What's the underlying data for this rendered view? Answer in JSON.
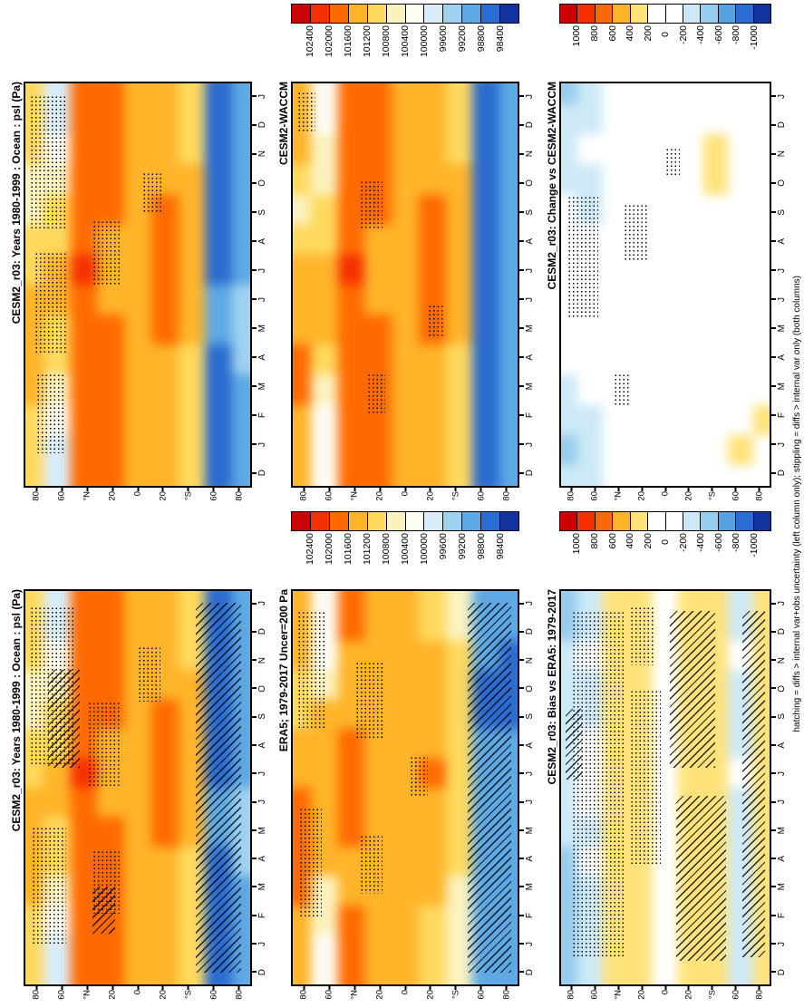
{
  "figure": {
    "caption": "hatching = diffs > internal var+obs uncertainty (left column only); stippling = diffs > internal var only (both columns)"
  },
  "chart_data": {
    "type": "heatmap",
    "units": "Pa",
    "layout": {
      "rows": 2,
      "cols": 3,
      "rotated_page": true,
      "legend_position": "top-of-each-column",
      "grid": false
    },
    "months": [
      "J",
      "D",
      "N",
      "O",
      "S",
      "A",
      "J",
      "J",
      "M",
      "A",
      "M",
      "F",
      "J",
      "D"
    ],
    "months_original_order": [
      "D",
      "J",
      "F",
      "M",
      "A",
      "M",
      "J",
      "J",
      "A",
      "S",
      "O",
      "N",
      "D",
      "J"
    ],
    "lat_ticks": [
      "80",
      "60",
      "°N",
      "20",
      "0",
      "20",
      "°S",
      "60",
      "80"
    ],
    "colorbars": {
      "climo": {
        "labels": [
          "102400",
          "102000",
          "101600",
          "101200",
          "100800",
          "100400",
          "100000",
          "99600",
          "99200",
          "98800",
          "98400"
        ],
        "colors": [
          "#cc0000",
          "#f63000",
          "#ff6a00",
          "#ffb42a",
          "#ffd95e",
          "#fbf2c0",
          "#fdfdf4",
          "#d8edf8",
          "#a0d2f0",
          "#5ea8e4",
          "#2a6cd0",
          "#12339e"
        ]
      },
      "diff": {
        "labels": [
          "1000",
          "800",
          "600",
          "400",
          "200",
          "0",
          "-200",
          "-400",
          "-600",
          "-800",
          "-1000"
        ],
        "colors": [
          "#cc0000",
          "#f63000",
          "#ff6a00",
          "#ffb42a",
          "#ffe27a",
          "#ffffff",
          "#ffffff",
          "#cde9f6",
          "#96ccee",
          "#58a0e0",
          "#2a6cd0",
          "#12339e"
        ]
      }
    },
    "panels": [
      {
        "position": "top-left",
        "title": "CESM2_r03: Years 1980-1999 : Ocean : psl (Pa)",
        "palette": "climo",
        "colorbar": null,
        "field": "cesm2_climo",
        "stipple": [
          {
            "x": 0.02,
            "y": 0.03,
            "w": 0.17,
            "h": 0.33
          },
          {
            "x": 0.04,
            "y": 0.42,
            "w": 0.14,
            "h": 0.25
          },
          {
            "x": 0.3,
            "y": 0.34,
            "w": 0.12,
            "h": 0.16
          },
          {
            "x": 0.52,
            "y": 0.22,
            "w": 0.09,
            "h": 0.1
          },
          {
            "x": 0.05,
            "y": 0.72,
            "w": 0.13,
            "h": 0.2
          }
        ],
        "hatch": []
      },
      {
        "position": "top-middle",
        "title": "CESM2-WACCM",
        "palette": "climo",
        "colorbar": "climo",
        "field": "waccm_climo",
        "stipple": [
          {
            "x": 0.3,
            "y": 0.24,
            "w": 0.1,
            "h": 0.12
          },
          {
            "x": 0.02,
            "y": 0.02,
            "w": 0.08,
            "h": 0.1
          },
          {
            "x": 0.33,
            "y": 0.72,
            "w": 0.08,
            "h": 0.1
          },
          {
            "x": 0.6,
            "y": 0.55,
            "w": 0.07,
            "h": 0.08
          }
        ],
        "hatch": []
      },
      {
        "position": "top-right",
        "title": "CESM2_r03: Change vs CESM2-WACCM",
        "palette": "diff",
        "colorbar": "diff",
        "field": "change_vs_waccm",
        "stipple": [
          {
            "x": 0.03,
            "y": 0.28,
            "w": 0.15,
            "h": 0.3
          },
          {
            "x": 0.3,
            "y": 0.3,
            "w": 0.12,
            "h": 0.14
          },
          {
            "x": 0.5,
            "y": 0.16,
            "w": 0.07,
            "h": 0.07
          },
          {
            "x": 0.25,
            "y": 0.72,
            "w": 0.08,
            "h": 0.08
          }
        ],
        "hatch": []
      },
      {
        "position": "bottom-left",
        "title": "CESM2_r03: Years 1980-1999 : Ocean : psl (Pa)",
        "palette": "climo",
        "colorbar": null,
        "field": "cesm2_climo",
        "stipple": [
          {
            "x": 0.02,
            "y": 0.04,
            "w": 0.2,
            "h": 0.4
          },
          {
            "x": 0.28,
            "y": 0.28,
            "w": 0.14,
            "h": 0.22
          },
          {
            "x": 0.3,
            "y": 0.66,
            "w": 0.12,
            "h": 0.16
          },
          {
            "x": 0.5,
            "y": 0.14,
            "w": 0.1,
            "h": 0.14
          },
          {
            "x": 0.03,
            "y": 0.6,
            "w": 0.15,
            "h": 0.3
          }
        ],
        "hatch": [
          {
            "x": 0.1,
            "y": 0.2,
            "w": 0.14,
            "h": 0.25
          },
          {
            "x": 0.76,
            "y": 0.03,
            "w": 0.2,
            "h": 0.94
          },
          {
            "x": 0.3,
            "y": 0.75,
            "w": 0.1,
            "h": 0.12
          }
        ]
      },
      {
        "position": "bottom-middle",
        "title": "ERA5; 1979-2017 Uncer=200 Pa",
        "palette": "climo",
        "colorbar": "climo",
        "field": "era5_climo",
        "stipple": [
          {
            "x": 0.02,
            "y": 0.05,
            "w": 0.13,
            "h": 0.3
          },
          {
            "x": 0.28,
            "y": 0.18,
            "w": 0.12,
            "h": 0.2
          },
          {
            "x": 0.3,
            "y": 0.62,
            "w": 0.1,
            "h": 0.15
          },
          {
            "x": 0.03,
            "y": 0.55,
            "w": 0.1,
            "h": 0.28
          },
          {
            "x": 0.52,
            "y": 0.42,
            "w": 0.08,
            "h": 0.1
          }
        ],
        "hatch": [
          {
            "x": 0.78,
            "y": 0.03,
            "w": 0.19,
            "h": 0.94
          }
        ]
      },
      {
        "position": "bottom-right",
        "title": "CESM2_r03: Bias vs ERA5: 1979-2017",
        "palette": "diff",
        "colorbar": "diff",
        "field": "bias_vs_era5",
        "stipple": [
          {
            "x": 0.05,
            "y": 0.05,
            "w": 0.25,
            "h": 0.88
          },
          {
            "x": 0.33,
            "y": 0.25,
            "w": 0.15,
            "h": 0.45
          },
          {
            "x": 0.33,
            "y": 0.04,
            "w": 0.12,
            "h": 0.15
          }
        ],
        "hatch": [
          {
            "x": 0.52,
            "y": 0.05,
            "w": 0.22,
            "h": 0.4
          },
          {
            "x": 0.55,
            "y": 0.52,
            "w": 0.24,
            "h": 0.42
          },
          {
            "x": 0.87,
            "y": 0.05,
            "w": 0.11,
            "h": 0.88
          },
          {
            "x": 0.02,
            "y": 0.3,
            "w": 0.08,
            "h": 0.18
          }
        ]
      }
    ],
    "lat_columns": [
      "80N",
      "60N",
      "40N",
      "20N",
      "0",
      "20S",
      "40S",
      "60S",
      "80S"
    ],
    "fields": {
      "cesm2_climo": [
        [
          100900,
          99950,
          101900,
          101700,
          101250,
          101300,
          101000,
          98600,
          99100
        ],
        [
          101000,
          99900,
          101900,
          101700,
          101250,
          101300,
          101000,
          98700,
          99100
        ],
        [
          100900,
          100200,
          101800,
          101650,
          101250,
          101400,
          101100,
          98600,
          99050
        ],
        [
          100700,
          100500,
          101700,
          101600,
          101250,
          101500,
          101200,
          98500,
          99000
        ],
        [
          100500,
          100900,
          101700,
          101600,
          101300,
          101600,
          101250,
          98450,
          99000
        ],
        [
          100900,
          101100,
          101900,
          101500,
          101300,
          101750,
          101300,
          98600,
          99100
        ],
        [
          101100,
          101200,
          102050,
          101500,
          101350,
          101800,
          101300,
          98750,
          99150
        ],
        [
          101200,
          101200,
          101950,
          101500,
          101300,
          101700,
          101300,
          98800,
          99200
        ],
        [
          101400,
          101150,
          101850,
          101600,
          101300,
          101600,
          101200,
          98800,
          99200
        ],
        [
          101500,
          101000,
          101800,
          101650,
          101250,
          101500,
          101100,
          98750,
          99200
        ],
        [
          101300,
          100400,
          101800,
          101700,
          101250,
          101400,
          101050,
          98650,
          99100
        ],
        [
          101100,
          100100,
          101850,
          101700,
          101250,
          101350,
          101000,
          98600,
          99100
        ],
        [
          100900,
          99950,
          101900,
          101700,
          101250,
          101300,
          101000,
          98600,
          99100
        ],
        [
          101000,
          99900,
          101900,
          101700,
          101250,
          101300,
          101000,
          98700,
          99100
        ]
      ],
      "waccm_climo": [
        [
          101400,
          100200,
          101900,
          101700,
          101300,
          101300,
          101000,
          98500,
          99000
        ],
        [
          101400,
          100100,
          101900,
          101700,
          101300,
          101300,
          101000,
          98600,
          99000
        ],
        [
          101300,
          100400,
          101800,
          101650,
          101300,
          101400,
          101100,
          98500,
          99000
        ],
        [
          101000,
          100600,
          101700,
          101600,
          101300,
          101500,
          101200,
          98450,
          98900
        ],
        [
          100700,
          101000,
          101700,
          101600,
          101350,
          101600,
          101250,
          98400,
          98900
        ],
        [
          101000,
          101150,
          101900,
          101500,
          101350,
          101750,
          101300,
          98500,
          99000
        ],
        [
          101200,
          101250,
          102050,
          101500,
          101400,
          101800,
          101300,
          98650,
          99050
        ],
        [
          101300,
          101250,
          101950,
          101500,
          101350,
          101700,
          101300,
          98700,
          99100
        ],
        [
          101500,
          101200,
          101850,
          101600,
          101350,
          101600,
          101200,
          98700,
          99100
        ],
        [
          101700,
          101100,
          101800,
          101650,
          101300,
          101500,
          101100,
          98650,
          99100
        ],
        [
          101600,
          100600,
          101800,
          101700,
          101300,
          101400,
          101050,
          98550,
          99000
        ],
        [
          101500,
          100300,
          101850,
          101700,
          101300,
          101350,
          101000,
          98500,
          99000
        ],
        [
          101400,
          100200,
          101900,
          101700,
          101300,
          101300,
          101000,
          98500,
          99000
        ],
        [
          101400,
          100100,
          101900,
          101700,
          101300,
          101300,
          101000,
          98600,
          99000
        ]
      ],
      "era5_climo": [
        [
          101300,
          100200,
          101650,
          101500,
          101350,
          101100,
          100700,
          98800,
          98800
        ],
        [
          101400,
          100150,
          101650,
          101500,
          101350,
          101100,
          100700,
          98900,
          98800
        ],
        [
          101300,
          100350,
          101550,
          101450,
          101350,
          101200,
          100800,
          98800,
          98750
        ],
        [
          101100,
          100750,
          101450,
          101400,
          101300,
          101300,
          100900,
          98700,
          98700
        ],
        [
          100900,
          101200,
          101450,
          101400,
          101400,
          101400,
          100950,
          98650,
          98700
        ],
        [
          101300,
          101300,
          101650,
          101300,
          101400,
          101550,
          101000,
          98800,
          98800
        ],
        [
          101500,
          101350,
          101800,
          101300,
          101450,
          101600,
          101000,
          98950,
          98850
        ],
        [
          101600,
          101400,
          101700,
          101300,
          101400,
          101500,
          101000,
          99000,
          98900
        ],
        [
          101800,
          101400,
          101600,
          101400,
          101400,
          101400,
          100900,
          99000,
          98900
        ],
        [
          101900,
          101200,
          101550,
          101450,
          101300,
          101300,
          100800,
          98950,
          98900
        ],
        [
          101700,
          100700,
          101550,
          101500,
          101350,
          101200,
          100750,
          98850,
          98800
        ],
        [
          101500,
          100450,
          101600,
          101500,
          101350,
          101150,
          100700,
          98800,
          98800
        ],
        [
          101300,
          100200,
          101650,
          101500,
          101350,
          101100,
          100700,
          98800,
          98800
        ],
        [
          101400,
          100150,
          101650,
          101500,
          101350,
          101100,
          100700,
          98900,
          98800
        ]
      ],
      "change_vs_waccm": [
        [
          -500,
          -300,
          0,
          0,
          -50,
          0,
          0,
          100,
          100
        ],
        [
          -400,
          -300,
          0,
          0,
          -50,
          0,
          0,
          100,
          100
        ],
        [
          -400,
          -200,
          0,
          0,
          -50,
          0,
          250,
          100,
          50
        ],
        [
          -300,
          -300,
          0,
          50,
          -50,
          0,
          250,
          50,
          100
        ],
        [
          -200,
          -300,
          0,
          0,
          -50,
          0,
          0,
          50,
          100
        ],
        [
          -100,
          -50,
          0,
          0,
          -50,
          0,
          0,
          100,
          100
        ],
        [
          -100,
          -50,
          0,
          0,
          -50,
          0,
          0,
          100,
          100
        ],
        [
          -100,
          -50,
          0,
          0,
          -50,
          0,
          0,
          100,
          100
        ],
        [
          -100,
          -50,
          0,
          0,
          -50,
          0,
          0,
          100,
          100
        ],
        [
          -200,
          -100,
          0,
          -50,
          -50,
          0,
          0,
          100,
          100
        ],
        [
          -300,
          -200,
          0,
          0,
          -50,
          0,
          0,
          100,
          100
        ],
        [
          -400,
          -300,
          0,
          0,
          -50,
          0,
          0,
          100,
          250
        ],
        [
          -500,
          -300,
          0,
          0,
          -50,
          0,
          0,
          250,
          100
        ],
        [
          -400,
          -300,
          0,
          0,
          -50,
          0,
          0,
          100,
          100
        ]
      ],
      "bias_vs_era5": [
        [
          -500,
          -300,
          250,
          300,
          -100,
          250,
          300,
          -300,
          300
        ],
        [
          -450,
          -250,
          250,
          300,
          -100,
          250,
          300,
          -250,
          300
        ],
        [
          -400,
          -150,
          250,
          250,
          -100,
          250,
          300,
          -200,
          250
        ],
        [
          -350,
          -250,
          250,
          250,
          -50,
          250,
          300,
          -250,
          300
        ],
        [
          -300,
          -300,
          250,
          250,
          -100,
          250,
          350,
          -300,
          300
        ],
        [
          -250,
          -200,
          250,
          250,
          -100,
          300,
          350,
          -250,
          300
        ],
        [
          -300,
          -150,
          250,
          250,
          -100,
          300,
          350,
          -200,
          300
        ],
        [
          -350,
          -200,
          250,
          250,
          -100,
          250,
          300,
          -250,
          300
        ],
        [
          -400,
          -250,
          250,
          250,
          -100,
          250,
          300,
          -250,
          300
        ],
        [
          -450,
          -200,
          250,
          250,
          -50,
          250,
          300,
          -300,
          300
        ],
        [
          -500,
          -300,
          250,
          250,
          -100,
          250,
          300,
          -250,
          300
        ],
        [
          -500,
          -350,
          250,
          300,
          -100,
          250,
          300,
          -300,
          300
        ],
        [
          -500,
          -300,
          250,
          300,
          -100,
          250,
          300,
          -300,
          300
        ],
        [
          -450,
          -250,
          250,
          300,
          -100,
          250,
          300,
          -250,
          300
        ]
      ]
    }
  }
}
